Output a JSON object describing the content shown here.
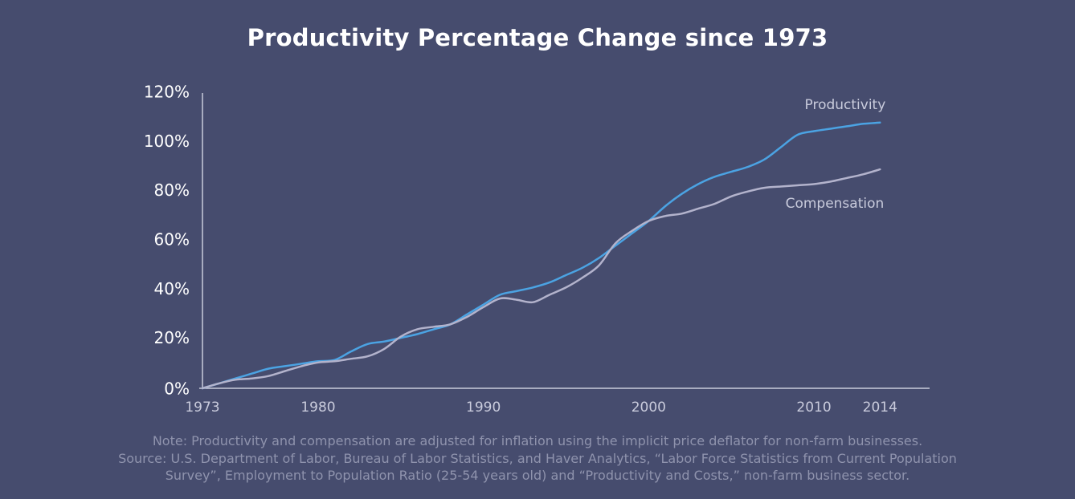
{
  "chart_data": {
    "type": "line",
    "title": "Productivity Percentage Change since 1973",
    "xlabel": "",
    "ylabel": "",
    "xlim": [
      1973,
      2017
    ],
    "ylim": [
      0,
      120
    ],
    "y_ticks": [
      {
        "value": 0,
        "label": "0%"
      },
      {
        "value": 20,
        "label": "20%"
      },
      {
        "value": 40,
        "label": "40%"
      },
      {
        "value": 60,
        "label": "60%"
      },
      {
        "value": 80,
        "label": "80%"
      },
      {
        "value": 100,
        "label": "100%"
      },
      {
        "value": 120,
        "label": "120%"
      }
    ],
    "x_ticks": [
      {
        "value": 1973,
        "label": "1973"
      },
      {
        "value": 1980,
        "label": "1980"
      },
      {
        "value": 1990,
        "label": "1990"
      },
      {
        "value": 2000,
        "label": "2000"
      },
      {
        "value": 2010,
        "label": "2010"
      },
      {
        "value": 2014,
        "label": "2014"
      }
    ],
    "series": [
      {
        "name": "Productivity",
        "color": "#4ba3e3",
        "x": [
          1973,
          1974,
          1975,
          1976,
          1977,
          1978,
          1979,
          1980,
          1981,
          1982,
          1983,
          1984,
          1985,
          1986,
          1987,
          1988,
          1989,
          1990,
          1991,
          1992,
          1993,
          1994,
          1995,
          1996,
          1997,
          1998,
          1999,
          2000,
          2001,
          2002,
          2003,
          2004,
          2005,
          2006,
          2007,
          2008,
          2009,
          2010,
          2011,
          2012,
          2013,
          2014
        ],
        "values": [
          0,
          2,
          4,
          6,
          8,
          9,
          10,
          11,
          11.5,
          15,
          18,
          19,
          20.5,
          22,
          24,
          26,
          30,
          34,
          38,
          39.5,
          41,
          43,
          46,
          49,
          53,
          58,
          63,
          68,
          74,
          79,
          83,
          86,
          88,
          90,
          93,
          98,
          103,
          104.5,
          105.5,
          106.5,
          107.5,
          108
        ]
      },
      {
        "name": "Compensation",
        "color": "#b3b3cc",
        "x": [
          1973,
          1974,
          1975,
          1976,
          1977,
          1978,
          1979,
          1980,
          1981,
          1982,
          1983,
          1984,
          1985,
          1986,
          1987,
          1988,
          1989,
          1990,
          1991,
          1992,
          1993,
          1994,
          1995,
          1996,
          1997,
          1998,
          1999,
          2000,
          2001,
          2002,
          2003,
          2004,
          2005,
          2006,
          2007,
          2008,
          2009,
          2010,
          2011,
          2012,
          2013,
          2014
        ],
        "values": [
          0,
          2,
          3.5,
          4,
          5,
          7,
          9,
          10.5,
          11,
          12,
          13,
          16,
          21,
          24,
          25,
          26,
          29,
          33,
          36.5,
          36,
          35,
          38,
          41,
          45,
          50,
          59,
          64,
          68,
          70,
          71,
          73,
          75,
          78,
          80,
          81.5,
          82,
          82.5,
          83,
          84,
          85.5,
          87,
          89
        ]
      }
    ]
  },
  "note": {
    "line1": "Note: Productivity and compensation are adjusted for inflation using the implicit price deflator for non-farm businesses.",
    "line2": "Source: U.S. Department of Labor, Bureau of Labor Statistics, and Haver Analytics, “Labor Force Statistics from Current Population",
    "line3": "Survey”, Employment to Population Ratio (25-54 years old) and “Productivity and Costs,” non-farm business sector."
  }
}
